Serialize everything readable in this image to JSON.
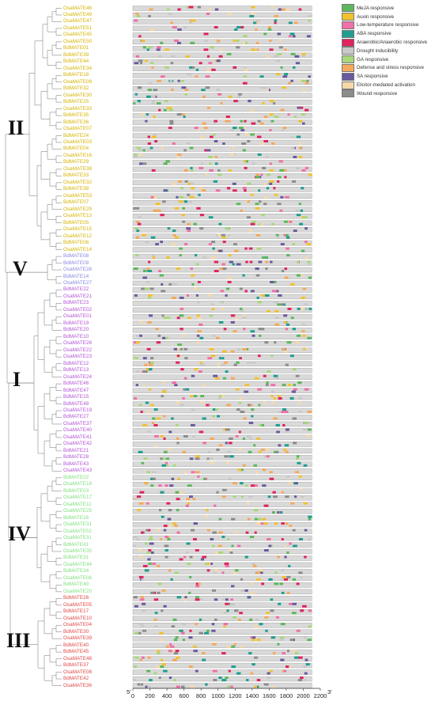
{
  "genes": [
    {
      "name": "OsaMATE46",
      "group": "II"
    },
    {
      "name": "OsaMATE49",
      "group": "II"
    },
    {
      "name": "OsaMATE47",
      "group": "II"
    },
    {
      "name": "OsaMATE51",
      "group": "II"
    },
    {
      "name": "OsaMATE45",
      "group": "II"
    },
    {
      "name": "OsaMATE50",
      "group": "II"
    },
    {
      "name": "BdMATE01",
      "group": "II"
    },
    {
      "name": "BdMATE39",
      "group": "II"
    },
    {
      "name": "BdMATE44",
      "group": "II"
    },
    {
      "name": "OsaMATE34",
      "group": "II"
    },
    {
      "name": "BdMATE18",
      "group": "II"
    },
    {
      "name": "OsaMATE09",
      "group": "II"
    },
    {
      "name": "BdMATE32",
      "group": "II"
    },
    {
      "name": "OsaMATE30",
      "group": "II"
    },
    {
      "name": "BdMATE25",
      "group": "II"
    },
    {
      "name": "OsaMATE33",
      "group": "II"
    },
    {
      "name": "BdMATE35",
      "group": "II"
    },
    {
      "name": "BdMATE36",
      "group": "II"
    },
    {
      "name": "OsaMATE07",
      "group": "II"
    },
    {
      "name": "BdMATE24",
      "group": "II"
    },
    {
      "name": "OsaMATE03",
      "group": "II"
    },
    {
      "name": "BdMATE04",
      "group": "II"
    },
    {
      "name": "OsaMATE16",
      "group": "II"
    },
    {
      "name": "BdMATE29",
      "group": "II"
    },
    {
      "name": "OsaMATE38",
      "group": "II"
    },
    {
      "name": "BdMATE33",
      "group": "II"
    },
    {
      "name": "OsaMATE32",
      "group": "II"
    },
    {
      "name": "BdMATE38",
      "group": "II"
    },
    {
      "name": "OsaMATE53",
      "group": "II"
    },
    {
      "name": "BdMATE07",
      "group": "II"
    },
    {
      "name": "OsaMATE29",
      "group": "II"
    },
    {
      "name": "OsaMATE13",
      "group": "II"
    },
    {
      "name": "BdMATE05",
      "group": "II"
    },
    {
      "name": "OsaMATE15",
      "group": "II"
    },
    {
      "name": "OsaMATE12",
      "group": "II"
    },
    {
      "name": "BdMATE06",
      "group": "II"
    },
    {
      "name": "OsaMATE14",
      "group": "II"
    },
    {
      "name": "BdMATE08",
      "group": "V"
    },
    {
      "name": "BdMATE09",
      "group": "V"
    },
    {
      "name": "OsaMATE28",
      "group": "V"
    },
    {
      "name": "BdMATE14",
      "group": "V"
    },
    {
      "name": "OsaMATE27",
      "group": "V"
    },
    {
      "name": "BdMATE22",
      "group": "I"
    },
    {
      "name": "OsaMATE21",
      "group": "I"
    },
    {
      "name": "BdMATE23",
      "group": "I"
    },
    {
      "name": "OsaMATE02",
      "group": "I"
    },
    {
      "name": "OsaMATE01",
      "group": "I"
    },
    {
      "name": "BdMATE19",
      "group": "I"
    },
    {
      "name": "BdMATE20",
      "group": "I"
    },
    {
      "name": "BdMATE10",
      "group": "I"
    },
    {
      "name": "OsaMATE26",
      "group": "I"
    },
    {
      "name": "OsaMATE22",
      "group": "I"
    },
    {
      "name": "OsaMATE23",
      "group": "I"
    },
    {
      "name": "BdMATE12",
      "group": "I"
    },
    {
      "name": "BdMATE13",
      "group": "I"
    },
    {
      "name": "OsaMATE24",
      "group": "I"
    },
    {
      "name": "BdMATE46",
      "group": "I"
    },
    {
      "name": "BdMATE47",
      "group": "I"
    },
    {
      "name": "BdMATE15",
      "group": "I"
    },
    {
      "name": "BdMATE48",
      "group": "I"
    },
    {
      "name": "OsaMATE19",
      "group": "I"
    },
    {
      "name": "BdMATE27",
      "group": "I"
    },
    {
      "name": "OsaMATE37",
      "group": "I"
    },
    {
      "name": "OsaMATE40",
      "group": "I"
    },
    {
      "name": "OsaMATE41",
      "group": "I"
    },
    {
      "name": "OsaMATE42",
      "group": "I"
    },
    {
      "name": "BdMATE21",
      "group": "I"
    },
    {
      "name": "BdMATE28",
      "group": "I"
    },
    {
      "name": "BdMATE43",
      "group": "I"
    },
    {
      "name": "OsaMATE43",
      "group": "I"
    },
    {
      "name": "BdMATE02",
      "group": "IV"
    },
    {
      "name": "OsaMATE18",
      "group": "IV"
    },
    {
      "name": "BdMATE03",
      "group": "IV"
    },
    {
      "name": "OsaMATE17",
      "group": "IV"
    },
    {
      "name": "OsaMATE11",
      "group": "IV"
    },
    {
      "name": "OsaMATE25",
      "group": "IV"
    },
    {
      "name": "BdMATE16",
      "group": "IV"
    },
    {
      "name": "OsaMATE31",
      "group": "IV"
    },
    {
      "name": "OsaMATE52",
      "group": "IV"
    },
    {
      "name": "OsaMATE31",
      "group": "IV"
    },
    {
      "name": "BdMATE41",
      "group": "IV"
    },
    {
      "name": "OsaMATE35",
      "group": "IV"
    },
    {
      "name": "BdMATE31",
      "group": "IV"
    },
    {
      "name": "OsaMATE44",
      "group": "IV"
    },
    {
      "name": "BdMATE34",
      "group": "IV"
    },
    {
      "name": "OsaMATE06",
      "group": "IV"
    },
    {
      "name": "BdMATE49",
      "group": "IV"
    },
    {
      "name": "OsaMATE20",
      "group": "IV"
    },
    {
      "name": "BdMATE26",
      "group": "III"
    },
    {
      "name": "OsaMATE05",
      "group": "III"
    },
    {
      "name": "BdMATE17",
      "group": "III"
    },
    {
      "name": "OsaMATE10",
      "group": "III"
    },
    {
      "name": "OsaMATE04",
      "group": "III"
    },
    {
      "name": "BdMATE30",
      "group": "III"
    },
    {
      "name": "OsaMATE39",
      "group": "III"
    },
    {
      "name": "BdMATE40",
      "group": "III"
    },
    {
      "name": "BdMATE45",
      "group": "III"
    },
    {
      "name": "OsaMATE48",
      "group": "III"
    },
    {
      "name": "BdMATE37",
      "group": "III"
    },
    {
      "name": "OsaMATE08",
      "group": "III"
    },
    {
      "name": "BdMATE42",
      "group": "III"
    },
    {
      "name": "OsaMATE36",
      "group": "III"
    }
  ],
  "groups": [
    {
      "label": "II",
      "color": "#d6b400"
    },
    {
      "label": "V",
      "color": "#8a88e0"
    },
    {
      "label": "I",
      "color": "#b455d6"
    },
    {
      "label": "IV",
      "color": "#7fe07f"
    },
    {
      "label": "III",
      "color": "#e34848"
    }
  ],
  "legend": [
    {
      "label": "MeJA responsive",
      "color": "#5cb85c"
    },
    {
      "label": "Auxin responsive",
      "color": "#f2c12e"
    },
    {
      "label": "Low-temperature responsive",
      "color": "#f06fa8"
    },
    {
      "label": "ABA responsive",
      "color": "#1f9e8f"
    },
    {
      "label": "Anaerobic/Anaerobic responsive",
      "color": "#e0245e"
    },
    {
      "label": "Drought inducibility",
      "color": "#c9c9c9"
    },
    {
      "label": "GA responsive",
      "color": "#a8d87a"
    },
    {
      "label": "Defense and stress responsive",
      "color": "#f5a95b"
    },
    {
      "label": "SA responsive",
      "color": "#6a5a9e"
    },
    {
      "label": "Elicitor-mediated activation",
      "color": "#f7d9a8"
    },
    {
      "label": "Wound responsive",
      "color": "#8c8c8c"
    }
  ],
  "axis": {
    "start_label": "5'",
    "end_label": "3'",
    "ticks": [
      0,
      200,
      400,
      600,
      800,
      1000,
      1200,
      1400,
      1600,
      1800,
      2000,
      2200
    ],
    "max": 2200,
    "sequence_length": 2100
  }
}
